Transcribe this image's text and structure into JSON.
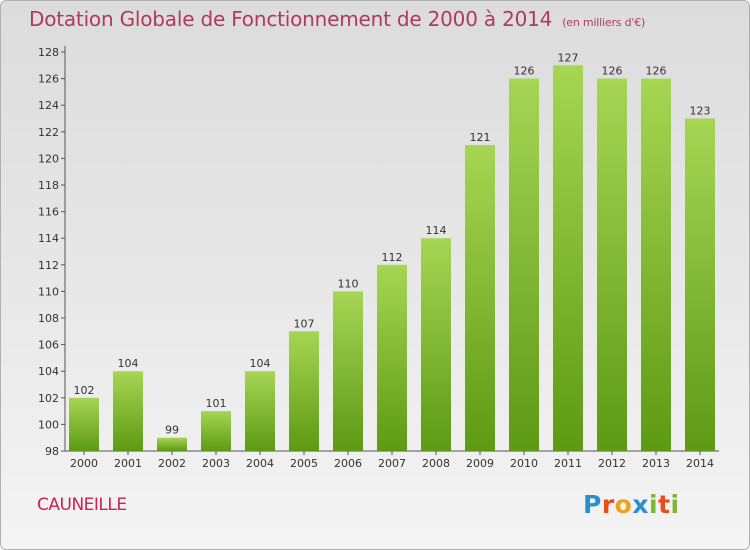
{
  "title": "Dotation Globale de Fonctionnement de 2000 à 2014",
  "subtitle": "(en milliers d'€)",
  "commune": "CAUNEILLE",
  "logo": {
    "text": "Proxiti",
    "letter_colors": [
      "#2a8fd0",
      "#e84d1c",
      "#f0a020",
      "#2a8fd0",
      "#7ab830",
      "#e84d1c",
      "#7ab830"
    ]
  },
  "colors": {
    "bar_light": "#a6d653",
    "bar_dark": "#5d9a14",
    "title": "#b03a5c",
    "commune": "#cc2255"
  },
  "chart_data": {
    "type": "bar",
    "title": "Dotation Globale de Fonctionnement de 2000 à 2014",
    "subtitle": "(en milliers d'€)",
    "categories": [
      "2000",
      "2001",
      "2002",
      "2003",
      "2004",
      "2005",
      "2006",
      "2007",
      "2008",
      "2009",
      "2010",
      "2011",
      "2012",
      "2013",
      "2014"
    ],
    "values": [
      102,
      104,
      99,
      101,
      104,
      107,
      110,
      112,
      114,
      121,
      126,
      127,
      126,
      126,
      123
    ],
    "ylim": [
      98,
      128
    ],
    "yticks": [
      98,
      100,
      102,
      104,
      106,
      108,
      110,
      112,
      114,
      116,
      118,
      120,
      122,
      124,
      126,
      128
    ],
    "grid": false,
    "data_labels": true
  }
}
